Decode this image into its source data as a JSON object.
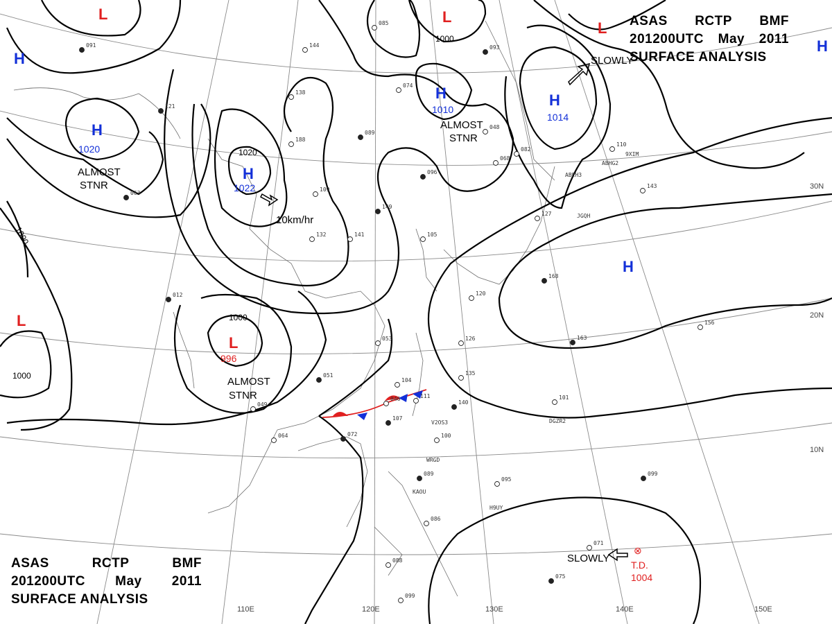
{
  "title": {
    "line1": [
      "ASAS",
      "RCTP",
      "BMF"
    ],
    "line2": [
      "201200UTC",
      "May",
      "2011"
    ],
    "line3": "SURFACE ANALYSIS"
  },
  "colors": {
    "high": "#1330d8",
    "low": "#e02020",
    "isobar": "#000000",
    "grid": "#8a8a8a"
  },
  "pressure_centers": [
    {
      "type": "H",
      "value": "1020"
    },
    {
      "type": "H",
      "value": "1022"
    },
    {
      "type": "H",
      "value": "1010"
    },
    {
      "type": "H",
      "value": "1014"
    },
    {
      "type": "H",
      "value": ""
    },
    {
      "type": "H",
      "value": ""
    },
    {
      "type": "L",
      "value": "996"
    },
    {
      "type": "L",
      "value": ""
    },
    {
      "type": "L",
      "value": ""
    },
    {
      "type": "L",
      "value": ""
    },
    {
      "type": "L",
      "value": ""
    }
  ],
  "tropical_depression": {
    "label": "T.D.",
    "value": "1004",
    "symbol": "⊗"
  },
  "notes": {
    "almost_stnr": [
      "ALMOST",
      "STNR"
    ],
    "slowly": "SLOWLY",
    "speed": "10km/hr"
  },
  "isobar_labels": [
    "1020",
    "1000",
    "1000",
    "1000",
    "1000"
  ],
  "longitude_labels": [
    "110E",
    "120E",
    "130E",
    "140E",
    "150E"
  ],
  "latitude_labels": [
    "30N",
    "20N",
    "10N"
  ],
  "station_values": [
    "091",
    "144",
    "138",
    "121",
    "188",
    "109",
    "149",
    "141",
    "132",
    "089",
    "085",
    "074",
    "093",
    "048",
    "068",
    "096",
    "082",
    "053",
    "051",
    "049",
    "064",
    "072",
    "104",
    "111",
    "107",
    "100",
    "101",
    "089",
    "086",
    "095",
    "099",
    "088",
    "071",
    "075",
    "099",
    "156",
    "163",
    "126",
    "135",
    "140",
    "120",
    "127",
    "168",
    "143",
    "110",
    "063",
    "105",
    "046",
    "012"
  ],
  "station_ids": [
    "ABEH3",
    "ABHG2",
    "JGQH",
    "9XIM",
    "DGZR2",
    "V2OS3",
    "KAOU",
    "H9UY",
    "WRGD"
  ]
}
